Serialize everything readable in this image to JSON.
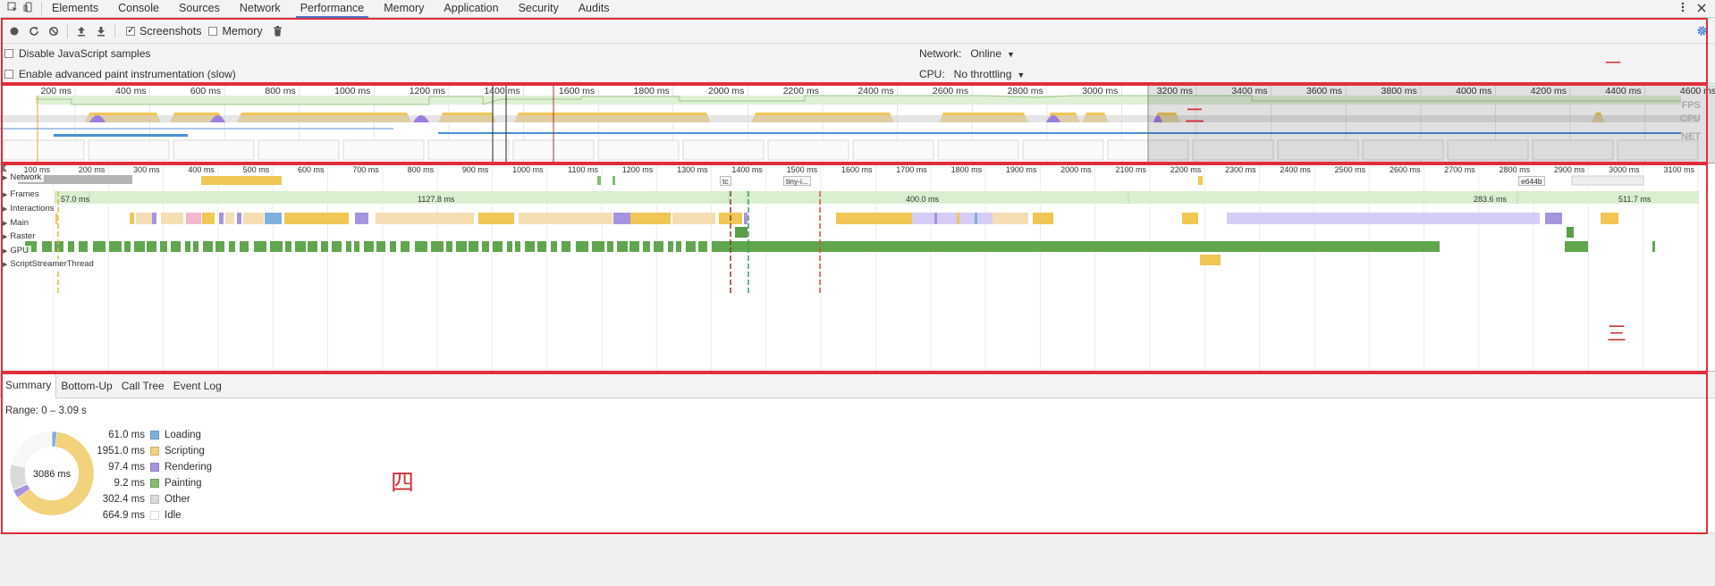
{
  "tabs": [
    {
      "label": "Elements"
    },
    {
      "label": "Console"
    },
    {
      "label": "Sources"
    },
    {
      "label": "Network"
    },
    {
      "label": "Performance",
      "active": true
    },
    {
      "label": "Memory"
    },
    {
      "label": "Application"
    },
    {
      "label": "Security"
    },
    {
      "label": "Audits"
    }
  ],
  "toolbar": {
    "screenshots_label": "Screenshots",
    "screenshots_checked": true,
    "memory_label": "Memory",
    "memory_checked": false
  },
  "settings": {
    "disable_js_samples": "Disable JavaScript samples",
    "advanced_paint": "Enable advanced paint instrumentation (slow)",
    "network_label": "Network:",
    "network_value": "Online",
    "cpu_label": "CPU:",
    "cpu_value": "No throttling"
  },
  "overview": {
    "ticks": [
      "200 ms",
      "400 ms",
      "600 ms",
      "800 ms",
      "1000 ms",
      "1200 ms",
      "1400 ms",
      "1600 ms",
      "1800 ms",
      "2000 ms",
      "2200 ms",
      "2400 ms",
      "2600 ms",
      "2800 ms",
      "3000 ms",
      "3200 ms",
      "3400 ms",
      "3600 ms",
      "3800 ms",
      "4000 ms",
      "4200 ms",
      "4400 ms",
      "4600 ms"
    ],
    "labels": {
      "fps": "FPS",
      "cpu": "CPU",
      "net": "NET"
    }
  },
  "flame": {
    "ticks": [
      "100 ms",
      "200 ms",
      "300 ms",
      "400 ms",
      "500 ms",
      "600 ms",
      "700 ms",
      "800 ms",
      "900 ms",
      "1000 ms",
      "1100 ms",
      "1200 ms",
      "1300 ms",
      "1400 ms",
      "1500 ms",
      "1600 ms",
      "1700 ms",
      "1800 ms",
      "1900 ms",
      "2000 ms",
      "2100 ms",
      "2200 ms",
      "2300 ms",
      "2400 ms",
      "2500 ms",
      "2600 ms",
      "2700 ms",
      "2800 ms",
      "2900 ms",
      "3000 ms",
      "3100 ms"
    ],
    "tracks": [
      {
        "name": "Network"
      },
      {
        "name": "Frames"
      },
      {
        "name": "Interactions"
      },
      {
        "name": "Main"
      },
      {
        "name": "Raster"
      },
      {
        "name": "GPU"
      },
      {
        "name": "ScriptStreamerThread"
      }
    ],
    "frame_labels": [
      "57.0 ms",
      "1127.8 ms",
      "400.0 ms",
      "283.6 ms",
      "511.7 ms"
    ],
    "network_items": [
      "tc",
      "tiny-i...",
      "e644b"
    ]
  },
  "bottom": {
    "tabs": [
      {
        "label": "Summary",
        "active": true
      },
      {
        "label": "Bottom-Up"
      },
      {
        "label": "Call Tree"
      },
      {
        "label": "Event Log"
      }
    ],
    "range": "Range: 0 – 3.09 s",
    "total": "3086 ms",
    "summary": [
      {
        "value": "61.0 ms",
        "label": "Loading",
        "color": "#7eb0de",
        "ms": 61.0
      },
      {
        "value": "1951.0 ms",
        "label": "Scripting",
        "color": "#f2d27d",
        "ms": 1951.0
      },
      {
        "value": "97.4 ms",
        "label": "Rendering",
        "color": "#a694de",
        "ms": 97.4
      },
      {
        "value": "9.2 ms",
        "label": "Painting",
        "color": "#83bc72",
        "ms": 9.2
      },
      {
        "value": "302.4 ms",
        "label": "Other",
        "color": "#dadada",
        "ms": 302.4
      },
      {
        "value": "664.9 ms",
        "label": "Idle",
        "color": "#ffffff",
        "ms": 664.9
      }
    ]
  },
  "annotations": {
    "one": "一",
    "two": "二",
    "three": "三",
    "four": "四"
  }
}
